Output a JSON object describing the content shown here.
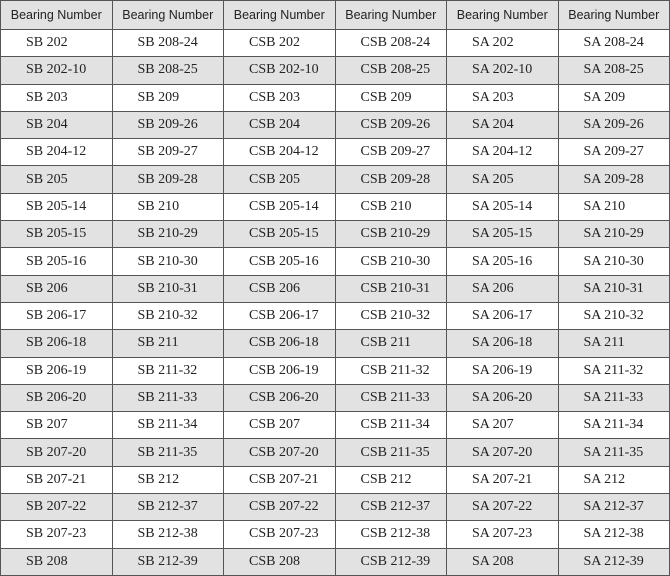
{
  "table": {
    "headers": [
      "Bearing Number",
      "Bearing Number",
      "Bearing Number",
      "Bearing Number",
      "Bearing Number",
      "Bearing Number"
    ],
    "rows": [
      [
        "SB 202",
        "SB 208-24",
        "CSB 202",
        "CSB 208-24",
        "SA 202",
        "SA 208-24"
      ],
      [
        "SB 202-10",
        "SB 208-25",
        "CSB 202-10",
        "CSB 208-25",
        "SA 202-10",
        "SA 208-25"
      ],
      [
        "SB 203",
        "SB 209",
        "CSB 203",
        "CSB 209",
        "SA 203",
        "SA 209"
      ],
      [
        "SB 204",
        "SB 209-26",
        "CSB 204",
        "CSB 209-26",
        "SA 204",
        "SA 209-26"
      ],
      [
        "SB 204-12",
        "SB 209-27",
        "CSB 204-12",
        "CSB 209-27",
        "SA 204-12",
        "SA 209-27"
      ],
      [
        "SB 205",
        "SB 209-28",
        "CSB 205",
        "CSB 209-28",
        "SA 205",
        "SA 209-28"
      ],
      [
        "SB 205-14",
        "SB 210",
        "CSB 205-14",
        "CSB 210",
        "SA 205-14",
        "SA 210"
      ],
      [
        "SB 205-15",
        "SB 210-29",
        "CSB 205-15",
        "CSB 210-29",
        "SA 205-15",
        "SA 210-29"
      ],
      [
        "SB 205-16",
        "SB 210-30",
        "CSB 205-16",
        "CSB 210-30",
        "SA 205-16",
        "SA 210-30"
      ],
      [
        "SB 206",
        "SB 210-31",
        "CSB 206",
        "CSB 210-31",
        "SA 206",
        "SA 210-31"
      ],
      [
        "SB 206-17",
        "SB 210-32",
        "CSB 206-17",
        "CSB 210-32",
        "SA 206-17",
        "SA 210-32"
      ],
      [
        "SB 206-18",
        "SB 211",
        "CSB 206-18",
        "CSB 211",
        "SA 206-18",
        "SA 211"
      ],
      [
        "SB 206-19",
        "SB 211-32",
        "CSB 206-19",
        "CSB 211-32",
        "SA 206-19",
        "SA 211-32"
      ],
      [
        "SB 206-20",
        "SB 211-33",
        "CSB 206-20",
        "CSB 211-33",
        "SA 206-20",
        "SA 211-33"
      ],
      [
        "SB 207",
        "SB 211-34",
        "CSB 207",
        "CSB 211-34",
        "SA 207",
        "SA 211-34"
      ],
      [
        "SB 207-20",
        "SB 211-35",
        "CSB 207-20",
        "CSB 211-35",
        "SA 207-20",
        "SA 211-35"
      ],
      [
        "SB 207-21",
        "SB 212",
        "CSB 207-21",
        "CSB 212",
        "SA 207-21",
        "SA 212"
      ],
      [
        "SB 207-22",
        "SB 212-37",
        "CSB 207-22",
        "CSB 212-37",
        "SA 207-22",
        "SA 212-37"
      ],
      [
        "SB 207-23",
        "SB 212-38",
        "CSB 207-23",
        "CSB 212-38",
        "SA 207-23",
        "SA 212-38"
      ],
      [
        "SB 208",
        "SB 212-39",
        "CSB 208",
        "CSB 212-39",
        "SA 208",
        "SA 212-39"
      ]
    ]
  },
  "colors": {
    "shade": "#e2e2e2",
    "border": "#555555"
  }
}
